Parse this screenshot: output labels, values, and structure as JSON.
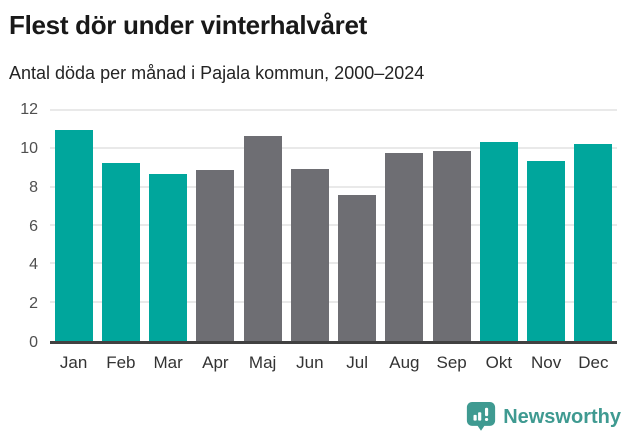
{
  "header": {
    "title": "Flest dör under vinterhalvåret",
    "subtitle": "Antal döda per månad i Pajala kommun, 2000–2024"
  },
  "chart_data": {
    "type": "bar",
    "title": "Flest dör under vinterhalvåret",
    "subtitle": "Antal döda per månad i Pajala kommun, 2000–2024",
    "categories": [
      "Jan",
      "Feb",
      "Mar",
      "Apr",
      "Maj",
      "Jun",
      "Jul",
      "Aug",
      "Sep",
      "Okt",
      "Nov",
      "Dec"
    ],
    "values": [
      11.0,
      9.3,
      8.7,
      8.9,
      10.7,
      9.0,
      7.6,
      9.8,
      9.9,
      10.4,
      9.4,
      10.3
    ],
    "bar_colors": [
      "#00a69c",
      "#00a69c",
      "#00a69c",
      "#6e6e73",
      "#6e6e73",
      "#6e6e73",
      "#6e6e73",
      "#6e6e73",
      "#6e6e73",
      "#00a69c",
      "#00a69c",
      "#00a69c"
    ],
    "highlight_color": "#00a69c",
    "base_color": "#6e6e73",
    "xlabel": "",
    "ylabel": "",
    "ylim": [
      0,
      12
    ],
    "yticks": [
      0,
      2,
      4,
      6,
      8,
      10,
      12
    ],
    "grid": true,
    "gridline_color": "#e9e9e9",
    "axis_line_color": "#414141",
    "legend": "none"
  },
  "footer": {
    "brand": "Newsworthy",
    "brand_color": "#3f9a91",
    "logo_icon": "bar-chart-speech-bubble"
  }
}
